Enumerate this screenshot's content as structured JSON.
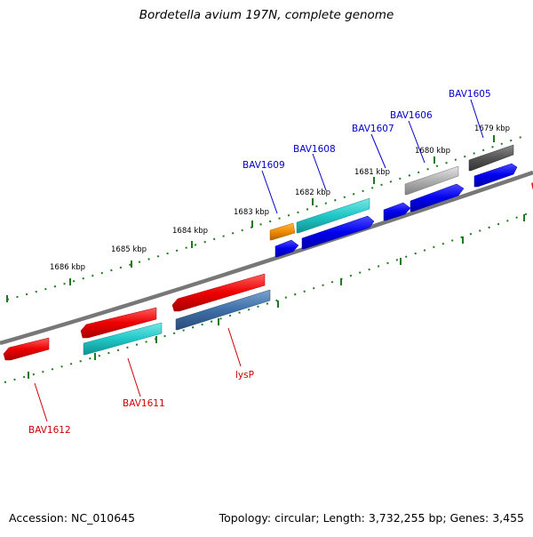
{
  "title": "Bordetella avium 197N, complete genome",
  "footer": {
    "accession": "Accession: NC_010645",
    "summary": "Topology: circular; Length: 3,732,255 bp; Genes: 3,455"
  },
  "ticks": [
    "1679 kbp",
    "1680 kbp",
    "1681 kbp",
    "1682 kbp",
    "1683 kbp",
    "1684 kbp",
    "1685 kbp",
    "1686 kbp"
  ],
  "genes": {
    "BAV1605": "BAV1605",
    "BAV1606": "BAV1606",
    "BAV1607": "BAV1607",
    "BAV1608": "BAV1608",
    "BAV1609": "BAV1609",
    "BAV1611": "BAV1611",
    "BAV1612": "BAV1612",
    "lysP": "lysP"
  },
  "colors": {
    "forward_label": "#0000cc",
    "reverse_label": "#cc0000",
    "backbone": "#7a7a7a",
    "tick": "#1f7a1f",
    "red": "#ee0000",
    "blue": "#0000ee",
    "cyan": "#1fc8c8",
    "orange": "#f08c00",
    "steelblue": "#3e6fa8",
    "lightgray": "#b0b0b0",
    "darkgray": "#555555"
  }
}
